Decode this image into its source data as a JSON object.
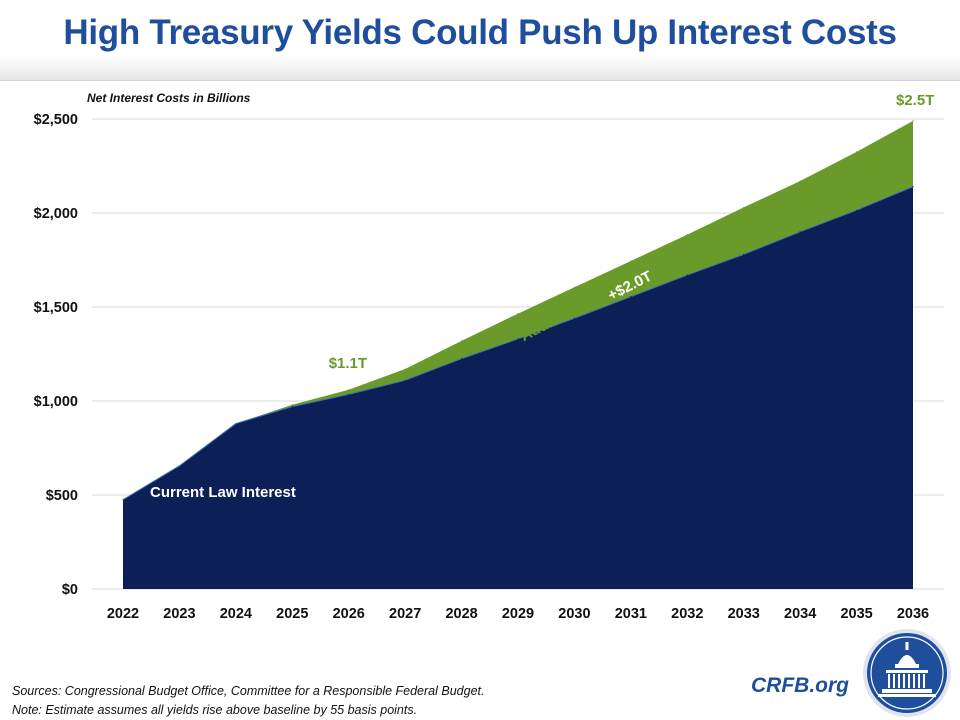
{
  "header": {
    "title": "High Treasury Yields Could Push Up Interest Costs"
  },
  "footer": {
    "sources": "Sources: Congressional Budget Office, Committee for a Responsible Federal Budget.",
    "note": "Note: Estimate assumes all yields rise above baseline by 55 basis points.",
    "brand": "CRFB.org"
  },
  "colors": {
    "title": "#1f4e9c",
    "current_law": "#0d1f57",
    "additional": "#6a9a2a",
    "label_green": "#6a9a2a"
  },
  "chart_data": {
    "type": "area",
    "stacked": true,
    "subtitle": "Net Interest Costs in Billions",
    "x": [
      "2022",
      "2023",
      "2024",
      "2025",
      "2026",
      "2027",
      "2028",
      "2029",
      "2030",
      "2031",
      "2032",
      "2033",
      "2034",
      "2035",
      "2036"
    ],
    "series": [
      {
        "name": "Current Law Interest",
        "values": [
          475,
          655,
          880,
          970,
          1035,
          1110,
          1225,
          1330,
          1440,
          1555,
          1670,
          1780,
          1900,
          2015,
          2140
        ]
      },
      {
        "name": "Additional Net Interest",
        "values": [
          0,
          0,
          0,
          10,
          25,
          60,
          95,
          135,
          165,
          190,
          215,
          250,
          270,
          310,
          350
        ]
      }
    ],
    "ylim": [
      0,
      2500
    ],
    "yticks": [
      {
        "value": 0,
        "label": "$0"
      },
      {
        "value": 500,
        "label": "$500"
      },
      {
        "value": 1000,
        "label": "$1,000"
      },
      {
        "value": 1500,
        "label": "$1,500"
      },
      {
        "value": 2000,
        "label": "$2,000"
      },
      {
        "value": 2500,
        "label": "$2,500"
      }
    ],
    "grid": true,
    "annotations": {
      "total_2026": "$1.1T",
      "total_2036": "$2.5T",
      "additional_label": "Additional Net Interest",
      "additional_total": "+$2.0T",
      "current_label": "Current Law Interest"
    }
  }
}
